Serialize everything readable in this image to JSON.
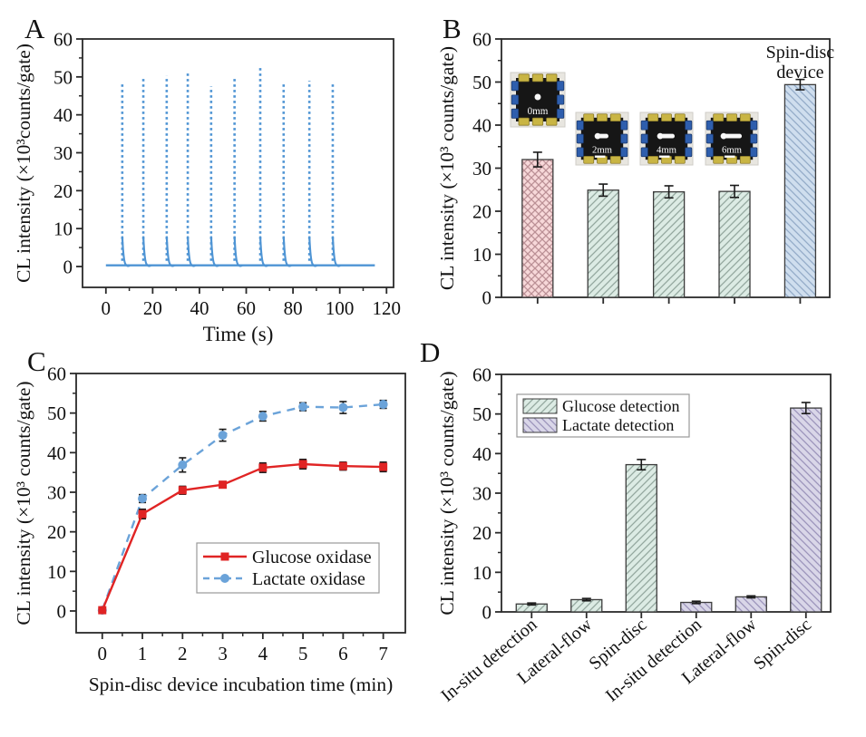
{
  "figure": {
    "panels": {
      "a": {
        "letter": "A"
      },
      "b": {
        "letter": "B"
      },
      "c": {
        "letter": "C"
      },
      "d": {
        "letter": "D"
      }
    }
  },
  "chart_data": [
    {
      "panel": "A",
      "type": "line",
      "subtype": "spike-train",
      "xlabel": "Time (s)",
      "ylabel": "CL intensity (×10³counts/gate)",
      "xlim": [
        0,
        120
      ],
      "ylim": [
        0,
        60
      ],
      "xticks": [
        0,
        20,
        40,
        60,
        80,
        100,
        120
      ],
      "yticks": [
        0,
        10,
        20,
        30,
        40,
        50,
        60
      ],
      "line_color": "#4e94d4",
      "baseline": {
        "start": 0,
        "end": 115,
        "value": 0
      },
      "spikes": [
        {
          "t": 7,
          "peak": 48.3
        },
        {
          "t": 16,
          "peak": 49.5
        },
        {
          "t": 26,
          "peak": 50.3
        },
        {
          "t": 35,
          "peak": 51.2
        },
        {
          "t": 45,
          "peak": 47.5
        },
        {
          "t": 55,
          "peak": 49.7
        },
        {
          "t": 66,
          "peak": 52.4
        },
        {
          "t": 76,
          "peak": 48.6
        },
        {
          "t": 87,
          "peak": 49.0
        },
        {
          "t": 97,
          "peak": 48.2
        }
      ]
    },
    {
      "panel": "B",
      "type": "bar",
      "ylabel": "CL intensity (×10³ counts/gate)",
      "ylim": [
        0,
        60
      ],
      "yticks": [
        0,
        10,
        20,
        30,
        40,
        50,
        60
      ],
      "categories": [
        "0mm",
        "2mm",
        "4mm",
        "6mm",
        "Spin-disc device"
      ],
      "values": [
        32.0,
        24.9,
        24.5,
        24.6,
        49.4
      ],
      "errors": [
        1.7,
        1.4,
        1.4,
        1.4,
        1.2
      ],
      "bar_styles": [
        {
          "fill": "#f7d8d9",
          "hatch": "x",
          "hatch_color": "#bb9095"
        },
        {
          "fill": "#dcebe4",
          "hatch": "/",
          "hatch_color": "#93a79e"
        },
        {
          "fill": "#dcebe4",
          "hatch": "/",
          "hatch_color": "#93a79e"
        },
        {
          "fill": "#dcebe4",
          "hatch": "/",
          "hatch_color": "#93a79e"
        },
        {
          "fill": "#cfdeee",
          "hatch": "\\",
          "hatch_color": "#93abc8"
        }
      ],
      "annotation": {
        "lines": [
          "Spin-disc",
          "device"
        ]
      },
      "insets": [
        {
          "label": "0mm",
          "channel": 0
        },
        {
          "label": "2mm",
          "channel": 1
        },
        {
          "label": "4mm",
          "channel": 2
        },
        {
          "label": "6mm",
          "channel": 3
        }
      ],
      "inset_colors": {
        "bg": "#e8e6e0",
        "chip": "#161616",
        "pad_gold": "#c9b544",
        "pad_blue": "#2e5ead",
        "well": "#f8f8f8",
        "label": "#ffffff"
      }
    },
    {
      "panel": "C",
      "type": "line",
      "xlabel": "Spin-disc device incubation time (min)",
      "ylabel": "CL intensity (×10³ counts/gate)",
      "xlim": [
        0,
        7
      ],
      "ylim": [
        0,
        60
      ],
      "xticks": [
        0,
        1,
        2,
        3,
        4,
        5,
        6,
        7
      ],
      "yticks": [
        0,
        10,
        20,
        30,
        40,
        50,
        60
      ],
      "x": [
        0,
        1,
        2,
        3,
        4,
        5,
        6,
        7
      ],
      "series": [
        {
          "name": "Glucose oxidase",
          "color": "#e02424",
          "marker": "square",
          "line_style": "solid",
          "values": [
            0.2,
            24.5,
            30.5,
            31.9,
            36.2,
            37.1,
            36.6,
            36.4
          ],
          "errors": [
            0.4,
            1.2,
            1.0,
            0.8,
            1.2,
            1.2,
            1.0,
            1.2
          ]
        },
        {
          "name": "Lactate oxidase",
          "color": "#6ba3d9",
          "marker": "circle",
          "line_style": "dashed",
          "values": [
            0.2,
            28.4,
            36.9,
            44.4,
            49.2,
            51.6,
            51.4,
            52.2
          ],
          "errors": [
            0.4,
            1.0,
            1.8,
            1.5,
            1.2,
            1.0,
            1.5,
            1.0
          ]
        }
      ],
      "legend_position": "inside-bottom-right"
    },
    {
      "panel": "D",
      "type": "bar",
      "ylabel": "CL intensity (×10³ counts/gate)",
      "ylim": [
        0,
        60
      ],
      "yticks": [
        0,
        10,
        20,
        30,
        40,
        50,
        60
      ],
      "categories": [
        "In-situ detection",
        "Lateral-flow",
        "Spin-disc",
        "In-situ detection",
        "Lateral-flow",
        "Spin-disc"
      ],
      "values": [
        2.0,
        3.1,
        37.2,
        2.4,
        3.8,
        51.5
      ],
      "errors": [
        0.25,
        0.3,
        1.3,
        0.3,
        0.25,
        1.4
      ],
      "groups": [
        "glucose",
        "glucose",
        "glucose",
        "lactate",
        "lactate",
        "lactate"
      ],
      "legend": [
        {
          "label": "Glucose detection",
          "fill": "#dcebe4",
          "hatch": "/",
          "hatch_color": "#93a79e"
        },
        {
          "label": "Lactate detection",
          "fill": "#d9d6e8",
          "hatch": "\\",
          "hatch_color": "#9b94bb"
        }
      ]
    }
  ]
}
